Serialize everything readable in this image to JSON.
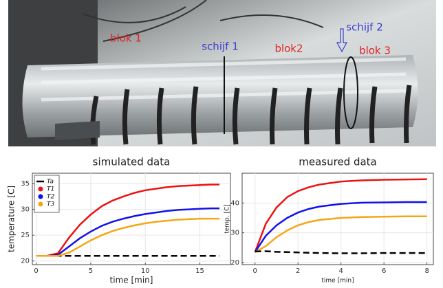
{
  "photo": {
    "labels": [
      {
        "text": "blok 1",
        "color": "#e02020"
      },
      {
        "text": "schijf 1",
        "color": "#3a3ad0"
      },
      {
        "text": "blok2",
        "color": "#e02020"
      },
      {
        "text": "schijf 2",
        "color": "#3a3ad0"
      },
      {
        "text": "blok 3",
        "color": "#e02020"
      }
    ]
  },
  "chart_data": [
    {
      "type": "line",
      "title": "simulated data",
      "x_label": "time [min]",
      "y_label": "temperature [C]",
      "x": [
        0,
        1,
        2,
        3,
        4,
        5,
        6,
        7,
        8,
        9,
        10,
        11,
        12,
        13,
        14,
        15,
        16,
        16.8
      ],
      "series": [
        {
          "name": "Ta",
          "color": "#000000",
          "dashed": true,
          "values": [
            21,
            21,
            21,
            21,
            21,
            21,
            21,
            21,
            21,
            21,
            21,
            21,
            21,
            21,
            21,
            21,
            21,
            21
          ]
        },
        {
          "name": "T1",
          "color": "#ee1111",
          "values": [
            21,
            21,
            21.5,
            24.5,
            27,
            29,
            30.6,
            31.7,
            32.5,
            33.2,
            33.7,
            34,
            34.3,
            34.5,
            34.6,
            34.7,
            34.8,
            34.8
          ]
        },
        {
          "name": "T2",
          "color": "#1111ee",
          "values": [
            21,
            21,
            21.2,
            22.8,
            24.4,
            25.7,
            26.8,
            27.6,
            28.2,
            28.7,
            29.1,
            29.4,
            29.7,
            29.9,
            30,
            30.1,
            30.2,
            30.2
          ]
        },
        {
          "name": "T3",
          "color": "#f5a516",
          "values": [
            21,
            21,
            21,
            21.6,
            22.8,
            24,
            25,
            25.8,
            26.4,
            26.9,
            27.3,
            27.6,
            27.8,
            28,
            28.1,
            28.2,
            28.2,
            28.2
          ]
        }
      ],
      "xlim": [
        -0.35,
        17.8
      ],
      "ylim": [
        19.3,
        37
      ],
      "xticks": [
        0,
        5,
        10,
        15
      ],
      "yticks": [
        20,
        25,
        30,
        35
      ],
      "grid": true,
      "legend": "top-left"
    },
    {
      "type": "line",
      "title": "measured data",
      "x_label": "time [min]",
      "y_label": "temp. [C]",
      "x": [
        0,
        0.5,
        1,
        1.5,
        2,
        2.5,
        3,
        4,
        5,
        6,
        7,
        8
      ],
      "series": [
        {
          "color": "#ee1111",
          "values": [
            23.5,
            33,
            38.5,
            42,
            44,
            45.3,
            46.2,
            47.2,
            47.6,
            47.8,
            47.9,
            48
          ]
        },
        {
          "color": "#1111ee",
          "values": [
            23.5,
            29,
            32.5,
            35,
            36.8,
            38,
            38.8,
            39.7,
            40.1,
            40.2,
            40.3,
            40.3
          ]
        },
        {
          "color": "#f5a516",
          "values": [
            23.5,
            25.5,
            28.5,
            30.8,
            32.5,
            33.6,
            34.3,
            35,
            35.3,
            35.4,
            35.5,
            35.5
          ]
        },
        {
          "color": "#000000",
          "dashed": true,
          "values": [
            23.7,
            23.8,
            23.6,
            23.5,
            23.4,
            23.3,
            23.2,
            23.1,
            23.1,
            23.2,
            23.2,
            23.2
          ]
        }
      ],
      "xlim": [
        -0.6,
        8.3
      ],
      "ylim": [
        19.3,
        50
      ],
      "xticks": [
        0,
        2,
        4,
        6,
        8
      ],
      "yticks": [
        20,
        30,
        40
      ],
      "grid": true
    }
  ]
}
